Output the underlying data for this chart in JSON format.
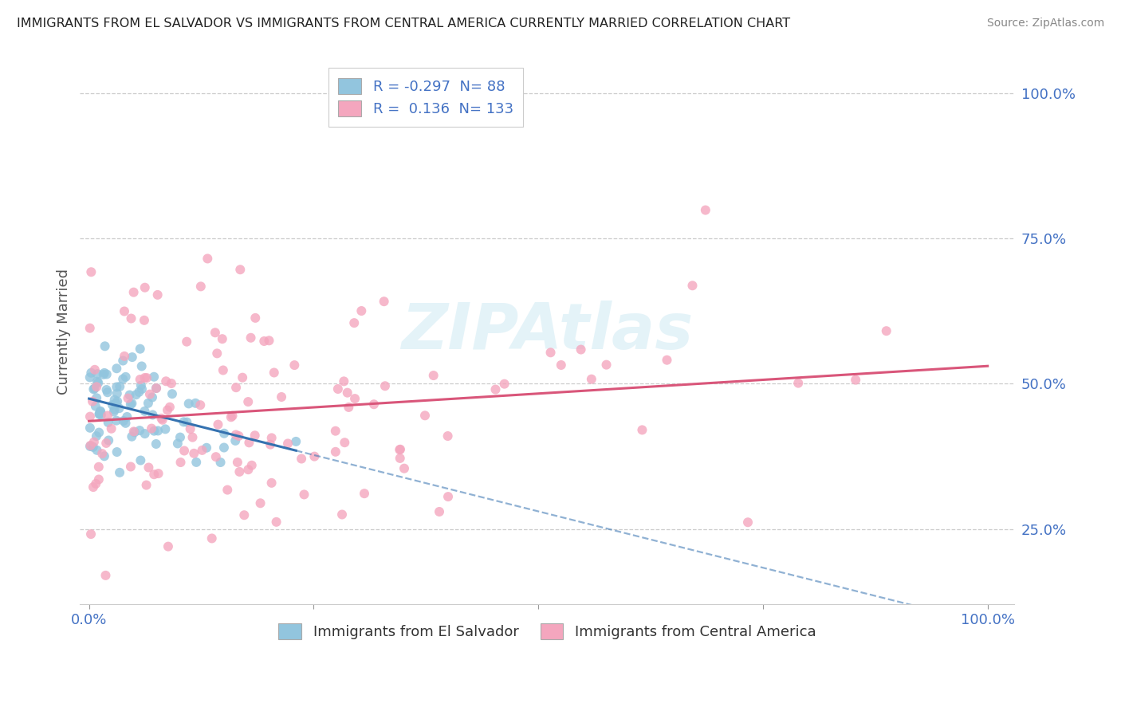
{
  "title": "IMMIGRANTS FROM EL SALVADOR VS IMMIGRANTS FROM CENTRAL AMERICA CURRENTLY MARRIED CORRELATION CHART",
  "source": "Source: ZipAtlas.com",
  "ylabel": "Currently Married",
  "ytick_labels": [
    "25.0%",
    "50.0%",
    "75.0%",
    "100.0%"
  ],
  "ytick_values": [
    0.25,
    0.5,
    0.75,
    1.0
  ],
  "xlim": [
    -0.01,
    1.03
  ],
  "ylim": [
    0.12,
    1.06
  ],
  "blue_R": -0.297,
  "blue_N": 88,
  "pink_R": 0.136,
  "pink_N": 133,
  "blue_color": "#92c5de",
  "pink_color": "#f4a6be",
  "blue_line_color": "#3572b0",
  "pink_line_color": "#d9567a",
  "legend_label_blue": "Immigrants from El Salvador",
  "legend_label_pink": "Immigrants from Central America",
  "watermark": "ZIPAtlas",
  "grid_color": "#cccccc",
  "background_color": "#ffffff",
  "title_color": "#222222",
  "axis_label_color": "#555555",
  "tick_label_color": "#4472c4",
  "legend_text_color": "#333333"
}
